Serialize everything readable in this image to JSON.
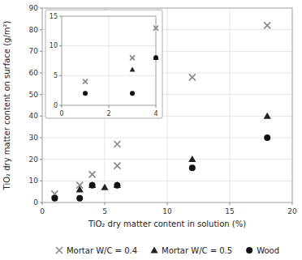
{
  "chart_data": [
    {
      "type": "scatter",
      "xlabel": "TiO₂ dry matter content in solution (%)",
      "ylabel": "TiO₂ dry matter content on surface (g/m²)",
      "xlim": [
        0,
        20
      ],
      "ylim": [
        0,
        90
      ],
      "xticks": [
        0,
        5,
        10,
        15,
        20
      ],
      "yticks": [
        0,
        10,
        20,
        30,
        40,
        50,
        60,
        70,
        80,
        90
      ],
      "grid": true,
      "legend": "bottom",
      "series": [
        {
          "name": "Mortar W/C = 0.4",
          "color": "#888888",
          "marker": "x",
          "x": [
            1,
            3,
            4,
            6,
            6,
            12,
            18
          ],
          "values": [
            4,
            8,
            13,
            17,
            27,
            58,
            82
          ]
        },
        {
          "name": "Mortar W/C = 0.5",
          "color": "#222222",
          "marker": "triangle",
          "x": [
            3,
            4,
            5,
            6,
            12,
            18
          ],
          "values": [
            6,
            8,
            7,
            8,
            20,
            40
          ]
        },
        {
          "name": "Wood",
          "color": "#111111",
          "marker": "circle",
          "x": [
            1,
            3,
            4,
            6,
            12,
            18
          ],
          "values": [
            2,
            2,
            8,
            8,
            16,
            30
          ]
        }
      ]
    },
    {
      "type": "scatter",
      "xlim": [
        0,
        4
      ],
      "ylim": [
        0,
        15
      ],
      "xticks": [
        0,
        2,
        4
      ],
      "yticks": [
        0,
        5,
        10,
        15
      ],
      "grid": true,
      "series": [
        {
          "color": "#888888",
          "marker": "x",
          "x": [
            1,
            3,
            4
          ],
          "values": [
            4,
            8,
            13
          ]
        },
        {
          "color": "#222222",
          "marker": "triangle",
          "x": [
            3,
            4
          ],
          "values": [
            6,
            8
          ]
        },
        {
          "color": "#111111",
          "marker": "circle",
          "x": [
            1,
            3,
            4
          ],
          "values": [
            2,
            2,
            8
          ]
        }
      ]
    }
  ]
}
